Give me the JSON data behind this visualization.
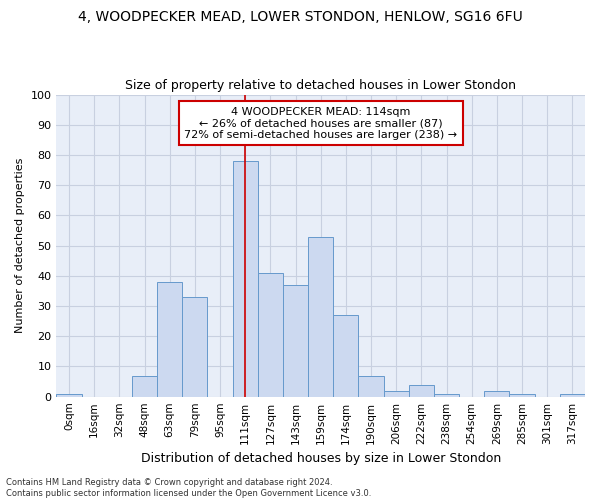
{
  "title": "4, WOODPECKER MEAD, LOWER STONDON, HENLOW, SG16 6FU",
  "subtitle": "Size of property relative to detached houses in Lower Stondon",
  "xlabel": "Distribution of detached houses by size in Lower Stondon",
  "ylabel": "Number of detached properties",
  "bin_labels": [
    "0sqm",
    "16sqm",
    "32sqm",
    "48sqm",
    "63sqm",
    "79sqm",
    "95sqm",
    "111sqm",
    "127sqm",
    "143sqm",
    "159sqm",
    "174sqm",
    "190sqm",
    "206sqm",
    "222sqm",
    "238sqm",
    "254sqm",
    "269sqm",
    "285sqm",
    "301sqm",
    "317sqm"
  ],
  "bar_values": [
    1,
    0,
    0,
    7,
    38,
    33,
    0,
    78,
    41,
    37,
    53,
    27,
    7,
    2,
    4,
    1,
    0,
    2,
    1,
    0,
    1
  ],
  "bar_color": "#ccd9f0",
  "bar_edge_color": "#6699cc",
  "grid_color": "#c8d0e0",
  "background_color": "#e8eef8",
  "vline_x": 7,
  "vline_color": "#cc0000",
  "annotation_line1": "4 WOODPECKER MEAD: 114sqm",
  "annotation_line2": "← 26% of detached houses are smaller (87)",
  "annotation_line3": "72% of semi-detached houses are larger (238) →",
  "annotation_box_color": "#ffffff",
  "annotation_box_edge": "#cc0000",
  "footer_text": "Contains HM Land Registry data © Crown copyright and database right 2024.\nContains public sector information licensed under the Open Government Licence v3.0.",
  "ylim": [
    0,
    100
  ],
  "yticks": [
    0,
    10,
    20,
    30,
    40,
    50,
    60,
    70,
    80,
    90,
    100
  ],
  "title_fontsize": 10,
  "subtitle_fontsize": 9,
  "ylabel_fontsize": 8,
  "xlabel_fontsize": 9
}
